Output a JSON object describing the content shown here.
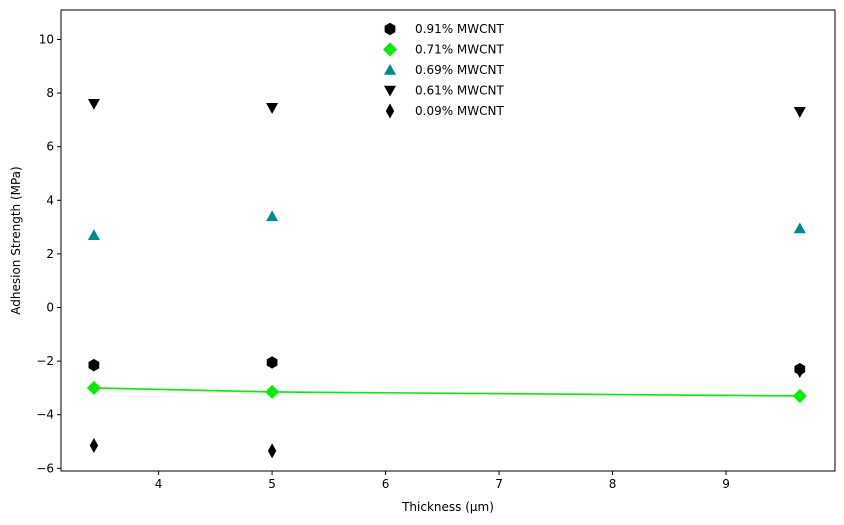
{
  "chart_data": {
    "type": "scatter",
    "title": "",
    "xlabel": "Thickness (µm)",
    "ylabel": "Adhesion Strength (MPa)",
    "xlim": [
      3.14,
      9.96
    ],
    "ylim": [
      -6.1,
      11.1
    ],
    "xticks": [
      4,
      5,
      6,
      7,
      8,
      9
    ],
    "yticks": [
      -6,
      -4,
      -2,
      0,
      2,
      4,
      6,
      8,
      10
    ],
    "grid": false,
    "legend_position": "top-center",
    "series": [
      {
        "name": "0.91% MWCNT",
        "marker": "hexagon",
        "color": "#000000",
        "line": false,
        "x": [
          3.43,
          5.0,
          9.65
        ],
        "y": [
          -2.15,
          -2.05,
          -2.3
        ]
      },
      {
        "name": "0.71% MWCNT",
        "marker": "diamond",
        "color": "#00ee00",
        "line": true,
        "x": [
          3.43,
          5.0,
          9.65
        ],
        "y": [
          -3.0,
          -3.15,
          -3.3
        ]
      },
      {
        "name": "0.69% MWCNT",
        "marker": "triangle-up",
        "color": "#008b8b",
        "line": false,
        "x": [
          3.43,
          5.0,
          9.65
        ],
        "y": [
          2.7,
          3.4,
          2.95
        ]
      },
      {
        "name": "0.61% MWCNT",
        "marker": "triangle-down",
        "color": "#000000",
        "line": false,
        "x": [
          3.43,
          5.0,
          9.65
        ],
        "y": [
          7.6,
          7.45,
          7.3
        ]
      },
      {
        "name": "0.09% MWCNT",
        "marker": "thin-diamond",
        "color": "#000000",
        "line": false,
        "x": [
          3.43,
          5.0,
          9.65
        ],
        "y": [
          -5.15,
          -5.35,
          -2.35
        ]
      }
    ]
  }
}
